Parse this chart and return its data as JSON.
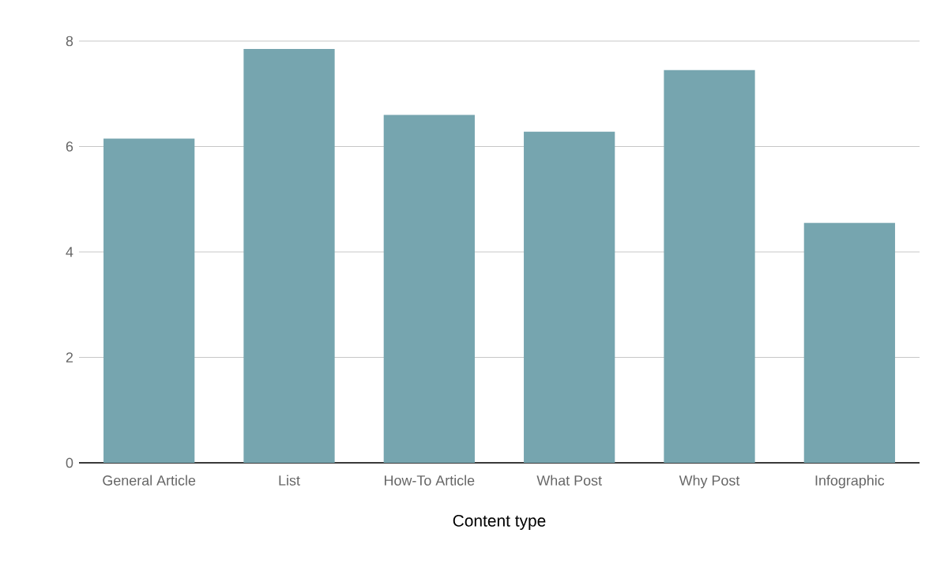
{
  "chart_data": {
    "type": "bar",
    "xlabel": "Content type",
    "categories": [
      "General Article",
      "List",
      "How-To Article",
      "What Post",
      "Why Post",
      "Infographic"
    ],
    "values": [
      6.15,
      7.85,
      6.6,
      6.28,
      7.45,
      4.55
    ],
    "color": "#76a5af",
    "ylim": [
      0,
      8
    ],
    "yticks": [
      0,
      2,
      4,
      6,
      8
    ],
    "grid": "y"
  }
}
